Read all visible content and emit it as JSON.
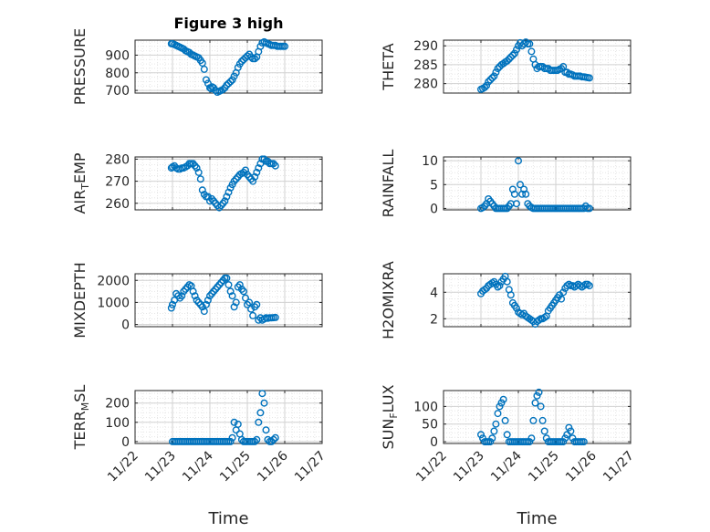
{
  "chart_data": [
    {
      "type": "scatter",
      "title": "Figure 3 high",
      "ylabel": "PRESSURE",
      "ylim": [
        685,
        985
      ],
      "yticks": [
        "700",
        "800",
        "900"
      ],
      "ytick_values": [
        700,
        800,
        900
      ],
      "grid": true,
      "series": [
        {
          "x": [
            0.97,
            1.0,
            1.05,
            1.1,
            1.15,
            1.2,
            1.25,
            1.3,
            1.35,
            1.4,
            1.45,
            1.5,
            1.55,
            1.6,
            1.65,
            1.7,
            1.75,
            1.8,
            1.85,
            1.9,
            1.95,
            2.0,
            2.03,
            2.06,
            2.1,
            2.15,
            2.2,
            2.25,
            2.3,
            2.35,
            2.4,
            2.45,
            2.5,
            2.55,
            2.6,
            2.65,
            2.7,
            2.75,
            2.8,
            2.85,
            2.9,
            2.95,
            3.0,
            3.05,
            3.1,
            3.15,
            3.2,
            3.25,
            3.3,
            3.35,
            3.4,
            3.45,
            3.5,
            3.55,
            3.6,
            3.65,
            3.7,
            3.75,
            3.8,
            3.85,
            3.9,
            3.95,
            4.0
          ],
          "y": [
            965,
            965,
            960,
            955,
            950,
            945,
            940,
            935,
            925,
            920,
            915,
            905,
            900,
            895,
            890,
            885,
            870,
            855,
            820,
            760,
            740,
            715,
            710,
            720,
            715,
            700,
            690,
            695,
            700,
            705,
            715,
            730,
            740,
            750,
            760,
            780,
            800,
            830,
            850,
            865,
            875,
            885,
            895,
            905,
            890,
            880,
            880,
            890,
            920,
            950,
            970,
            975,
            970,
            965,
            960,
            955,
            955,
            955,
            950,
            950,
            950,
            950,
            950
          ]
        }
      ]
    },
    {
      "type": "scatter",
      "ylabel": "THETA",
      "ylim": [
        277.5,
        291.5
      ],
      "yticks": [
        "280",
        "285",
        "290"
      ],
      "ytick_values": [
        280,
        285,
        290
      ],
      "grid": true,
      "series": [
        {
          "x": [
            1.0,
            1.05,
            1.1,
            1.15,
            1.2,
            1.25,
            1.3,
            1.35,
            1.4,
            1.45,
            1.5,
            1.55,
            1.6,
            1.65,
            1.7,
            1.75,
            1.8,
            1.85,
            1.9,
            1.95,
            2.0,
            2.05,
            2.1,
            2.15,
            2.2,
            2.25,
            2.3,
            2.35,
            2.4,
            2.45,
            2.5,
            2.55,
            2.6,
            2.65,
            2.7,
            2.75,
            2.8,
            2.85,
            2.9,
            2.95,
            3.0,
            3.05,
            3.1,
            3.15,
            3.2,
            3.25,
            3.3,
            3.35,
            3.4,
            3.45,
            3.5,
            3.55,
            3.6,
            3.65,
            3.7,
            3.75,
            3.8,
            3.85,
            3.9
          ],
          "y": [
            278.5,
            278.7,
            279,
            279.5,
            280.5,
            281,
            281.5,
            282,
            283,
            284,
            284.5,
            285,
            285.3,
            285.7,
            286,
            286.5,
            287,
            287.5,
            288,
            289,
            290,
            290.8,
            290,
            290.5,
            291,
            290.5,
            290.5,
            288.5,
            286.5,
            285,
            284,
            284.5,
            284.5,
            284.5,
            284,
            284,
            284,
            283.5,
            283.5,
            283.5,
            283.5,
            283.5,
            283.8,
            284,
            284.5,
            283,
            283,
            282.5,
            282.5,
            282.3,
            282,
            282,
            282,
            282,
            281.8,
            281.8,
            281.7,
            281.6,
            281.5
          ]
        }
      ]
    },
    {
      "type": "scatter",
      "ylabel": "AIR_TEMP",
      "ylim": [
        257,
        281
      ],
      "yticks": [
        "260",
        "270",
        "280"
      ],
      "ytick_values": [
        260,
        270,
        280
      ],
      "grid": true,
      "series": [
        {
          "x": [
            0.97,
            1.0,
            1.05,
            1.1,
            1.15,
            1.2,
            1.25,
            1.3,
            1.35,
            1.4,
            1.45,
            1.5,
            1.55,
            1.6,
            1.65,
            1.7,
            1.75,
            1.8,
            1.85,
            1.9,
            1.95,
            2.0,
            2.05,
            2.1,
            2.15,
            2.2,
            2.25,
            2.3,
            2.35,
            2.4,
            2.45,
            2.5,
            2.55,
            2.6,
            2.65,
            2.7,
            2.75,
            2.8,
            2.85,
            2.9,
            2.95,
            3.0,
            3.05,
            3.1,
            3.15,
            3.2,
            3.25,
            3.3,
            3.35,
            3.4,
            3.45,
            3.5,
            3.55,
            3.6,
            3.65,
            3.7,
            3.75
          ],
          "y": [
            276,
            276.5,
            277,
            276,
            275.5,
            275.5,
            276,
            276,
            276.5,
            277,
            278,
            278,
            278,
            277,
            276,
            274,
            271,
            266,
            264,
            263,
            263,
            261,
            262,
            261,
            260,
            259,
            258,
            259,
            260,
            261,
            263,
            265,
            267,
            268.5,
            270,
            271,
            272,
            273,
            273.5,
            274,
            275,
            273,
            272,
            271,
            270,
            272,
            274,
            276,
            278,
            280,
            280,
            279,
            279,
            278,
            278,
            278,
            277
          ]
        }
      ]
    },
    {
      "type": "scatter",
      "ylabel": "RAINFALL",
      "ylim": [
        -0.3,
        10.8
      ],
      "yticks": [
        "0",
        "5",
        "10"
      ],
      "ytick_values": [
        0,
        5,
        10
      ],
      "grid": true,
      "series": [
        {
          "x": [
            1.0,
            1.05,
            1.1,
            1.15,
            1.2,
            1.25,
            1.3,
            1.35,
            1.4,
            1.45,
            1.5,
            1.55,
            1.6,
            1.65,
            1.7,
            1.75,
            1.8,
            1.85,
            1.9,
            1.95,
            2.0,
            2.05,
            2.1,
            2.15,
            2.2,
            2.25,
            2.3,
            2.35,
            2.4,
            2.45,
            2.5,
            2.55,
            2.6,
            2.65,
            2.7,
            2.75,
            2.8,
            2.85,
            2.9,
            2.95,
            3.0,
            3.05,
            3.1,
            3.15,
            3.2,
            3.25,
            3.3,
            3.35,
            3.4,
            3.45,
            3.5,
            3.55,
            3.6,
            3.65,
            3.7,
            3.75,
            3.8,
            3.85,
            3.9
          ],
          "y": [
            0,
            0.2,
            0.5,
            1,
            2,
            1.5,
            1,
            0.5,
            0,
            0,
            0,
            0,
            0,
            0,
            0,
            0.5,
            1,
            4,
            3,
            1,
            10,
            5,
            3,
            4,
            3,
            1,
            0.5,
            0.2,
            0,
            0,
            0,
            0,
            0,
            0,
            0,
            0,
            0,
            0,
            0,
            0,
            0,
            0,
            0,
            0,
            0,
            0,
            0,
            0,
            0,
            0,
            0,
            0,
            0,
            0,
            0,
            0,
            0.5,
            0,
            0
          ]
        }
      ]
    },
    {
      "type": "scatter",
      "ylabel": "MIXDEPTH",
      "ylim": [
        -100,
        2300
      ],
      "yticks": [
        "0",
        "1000",
        "2000"
      ],
      "ytick_values": [
        0,
        1000,
        2000
      ],
      "grid": true,
      "series": [
        {
          "x": [
            0.97,
            1.0,
            1.05,
            1.1,
            1.15,
            1.2,
            1.25,
            1.3,
            1.35,
            1.4,
            1.45,
            1.5,
            1.55,
            1.6,
            1.65,
            1.7,
            1.75,
            1.8,
            1.85,
            1.9,
            1.95,
            2.0,
            2.05,
            2.1,
            2.15,
            2.2,
            2.25,
            2.3,
            2.35,
            2.4,
            2.45,
            2.5,
            2.55,
            2.6,
            2.65,
            2.7,
            2.75,
            2.8,
            2.85,
            2.9,
            2.95,
            3.0,
            3.05,
            3.1,
            3.15,
            3.2,
            3.25,
            3.3,
            3.35,
            3.4,
            3.45,
            3.5,
            3.55,
            3.6,
            3.65,
            3.7,
            3.75
          ],
          "y": [
            750,
            900,
            1100,
            1400,
            1300,
            1200,
            1300,
            1500,
            1600,
            1700,
            1800,
            1750,
            1500,
            1300,
            1100,
            1000,
            900,
            800,
            600,
            900,
            1100,
            1300,
            1400,
            1500,
            1600,
            1700,
            1800,
            1900,
            2000,
            2100,
            2100,
            1800,
            1500,
            1300,
            800,
            1000,
            1700,
            1800,
            1600,
            1500,
            1200,
            900,
            1000,
            700,
            400,
            800,
            900,
            200,
            300,
            200,
            250,
            300,
            280,
            300,
            300,
            310,
            320
          ]
        }
      ]
    },
    {
      "type": "scatter",
      "ylabel": "H2OMIXRA",
      "ylim": [
        1.4,
        5.4
      ],
      "yticks": [
        "2",
        "4"
      ],
      "ytick_values": [
        2,
        4
      ],
      "grid": true,
      "series": [
        {
          "x": [
            1.0,
            1.05,
            1.1,
            1.15,
            1.2,
            1.25,
            1.3,
            1.35,
            1.4,
            1.45,
            1.5,
            1.55,
            1.6,
            1.65,
            1.7,
            1.75,
            1.8,
            1.85,
            1.9,
            1.95,
            2.0,
            2.05,
            2.1,
            2.15,
            2.2,
            2.25,
            2.3,
            2.35,
            2.4,
            2.45,
            2.5,
            2.55,
            2.6,
            2.65,
            2.7,
            2.75,
            2.8,
            2.85,
            2.9,
            2.95,
            3.0,
            3.05,
            3.1,
            3.15,
            3.2,
            3.25,
            3.3,
            3.35,
            3.4,
            3.45,
            3.5,
            3.55,
            3.6,
            3.65,
            3.7,
            3.75,
            3.8,
            3.85,
            3.9
          ],
          "y": [
            3.9,
            4.1,
            4.2,
            4.3,
            4.5,
            4.6,
            4.7,
            4.8,
            4.6,
            4.4,
            4.5,
            4.8,
            5.0,
            5.2,
            4.8,
            4.2,
            3.8,
            3.2,
            3.0,
            2.8,
            2.5,
            2.4,
            2.3,
            2.4,
            2.2,
            2.1,
            2.0,
            1.9,
            1.8,
            1.6,
            1.8,
            1.9,
            2.0,
            2.0,
            2.1,
            2.2,
            2.6,
            2.8,
            3.0,
            3.2,
            3.4,
            3.6,
            3.8,
            3.5,
            4.0,
            4.3,
            4.5,
            4.6,
            4.5,
            4.5,
            4.4,
            4.5,
            4.6,
            4.5,
            4.4,
            4.5,
            4.6,
            4.6,
            4.5
          ]
        }
      ]
    },
    {
      "type": "scatter",
      "ylabel": "TERR_MSL",
      "ylim": [
        -10,
        265
      ],
      "yticks": [
        "0",
        "100",
        "200"
      ],
      "ytick_values": [
        0,
        100,
        200
      ],
      "grid": true,
      "series": [
        {
          "x": [
            1.0,
            1.05,
            1.1,
            1.15,
            1.2,
            1.25,
            1.3,
            1.35,
            1.4,
            1.45,
            1.5,
            1.55,
            1.6,
            1.65,
            1.7,
            1.75,
            1.8,
            1.85,
            1.9,
            1.95,
            2.0,
            2.05,
            2.1,
            2.15,
            2.2,
            2.25,
            2.3,
            2.35,
            2.4,
            2.45,
            2.5,
            2.55,
            2.6,
            2.65,
            2.7,
            2.75,
            2.8,
            2.85,
            2.9,
            2.95,
            3.0,
            3.05,
            3.1,
            3.15,
            3.2,
            3.25,
            3.3,
            3.35,
            3.4,
            3.45,
            3.5,
            3.55,
            3.6,
            3.65,
            3.7,
            3.75
          ],
          "y": [
            0,
            0,
            0,
            0,
            0,
            0,
            0,
            0,
            0,
            0,
            0,
            0,
            0,
            0,
            0,
            0,
            0,
            0,
            0,
            0,
            0,
            0,
            0,
            0,
            0,
            0,
            0,
            0,
            0,
            0,
            0,
            0,
            20,
            100,
            60,
            90,
            40,
            10,
            0,
            0,
            0,
            0,
            0,
            0,
            0,
            10,
            100,
            150,
            250,
            200,
            60,
            10,
            0,
            0,
            10,
            20
          ]
        }
      ]
    },
    {
      "type": "scatter",
      "ylabel": "SUN_FLUX",
      "ylim": [
        -5,
        145
      ],
      "yticks": [
        "0",
        "50",
        "100"
      ],
      "ytick_values": [
        0,
        50,
        100
      ],
      "grid": true,
      "series": [
        {
          "x": [
            1.0,
            1.05,
            1.1,
            1.15,
            1.2,
            1.25,
            1.3,
            1.35,
            1.4,
            1.45,
            1.5,
            1.55,
            1.6,
            1.65,
            1.7,
            1.75,
            1.8,
            1.85,
            1.9,
            1.95,
            2.0,
            2.05,
            2.1,
            2.15,
            2.2,
            2.25,
            2.3,
            2.35,
            2.4,
            2.45,
            2.5,
            2.55,
            2.6,
            2.65,
            2.7,
            2.75,
            2.8,
            2.85,
            2.9,
            2.95,
            3.0,
            3.05,
            3.1,
            3.15,
            3.2,
            3.25,
            3.3,
            3.35,
            3.4,
            3.45,
            3.5,
            3.55,
            3.6,
            3.65,
            3.7,
            3.75
          ],
          "y": [
            20,
            10,
            0,
            0,
            0,
            0,
            10,
            30,
            50,
            80,
            100,
            110,
            120,
            60,
            20,
            0,
            0,
            0,
            0,
            0,
            0,
            0,
            0,
            0,
            0,
            0,
            0,
            10,
            60,
            110,
            130,
            140,
            100,
            60,
            30,
            10,
            0,
            0,
            0,
            0,
            0,
            0,
            0,
            0,
            0,
            10,
            20,
            40,
            30,
            10,
            0,
            0,
            0,
            0,
            0,
            0
          ]
        }
      ]
    }
  ],
  "x_axis": {
    "ticks": [
      "11/22",
      "11/23",
      "11/24",
      "11/25",
      "11/26",
      "11/27"
    ],
    "tick_values": [
      0,
      1,
      2,
      3,
      4,
      5
    ],
    "xlim": [
      0,
      5
    ],
    "label": "Time"
  },
  "colors": {
    "marker": "#0072BD",
    "axis": "#262626",
    "grid": "#d2d2d2",
    "minor_grid": "#e6e6e6"
  }
}
